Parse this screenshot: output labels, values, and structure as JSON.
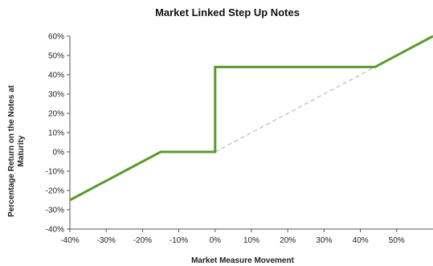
{
  "chart_data": {
    "type": "line",
    "title": "Market Linked Step Up Notes",
    "xlabel": "Market Measure Movement",
    "ylabel_lines": [
      "Percentage Return on the Notes at",
      "Maturity"
    ],
    "xlim": [
      -40,
      60
    ],
    "ylim": [
      -40,
      60
    ],
    "x_ticks": [
      -40,
      -30,
      -20,
      -10,
      0,
      10,
      20,
      30,
      40,
      50
    ],
    "y_ticks": [
      60,
      50,
      40,
      30,
      20,
      10,
      0,
      -10,
      -20,
      -30,
      -40
    ],
    "x_tick_labels": [
      "-40%",
      "-30%",
      "-20%",
      "-10%",
      "0%",
      "10%",
      "20%",
      "30%",
      "40%",
      "50%"
    ],
    "y_tick_labels": [
      "60%",
      "50%",
      "40%",
      "30%",
      "20%",
      "10%",
      "0%",
      "-10%",
      "-20%",
      "-30%",
      "-40%"
    ],
    "grid": false,
    "legend": "none",
    "series": [
      {
        "style": "solid",
        "color": "#5a9a2e",
        "points": [
          [
            -40,
            -25
          ],
          [
            -15,
            0
          ],
          [
            0,
            0
          ],
          [
            0,
            44
          ],
          [
            44,
            44
          ],
          [
            60,
            60
          ]
        ]
      },
      {
        "style": "dashed",
        "color": "#bcbcbc",
        "points": [
          [
            0,
            0
          ],
          [
            44,
            44
          ]
        ]
      }
    ]
  }
}
